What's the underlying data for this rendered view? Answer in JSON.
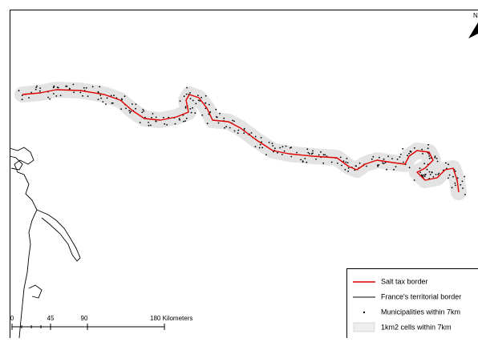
{
  "map": {
    "north_label": "N",
    "scale_bar": {
      "labels": [
        "0",
        "45",
        "90",
        "180 Kilometers"
      ]
    },
    "legend": {
      "items": [
        "Salt tax border",
        "France's territorial border",
        "Municipalities within 7km",
        "1km2 cells within 7km"
      ]
    }
  }
}
